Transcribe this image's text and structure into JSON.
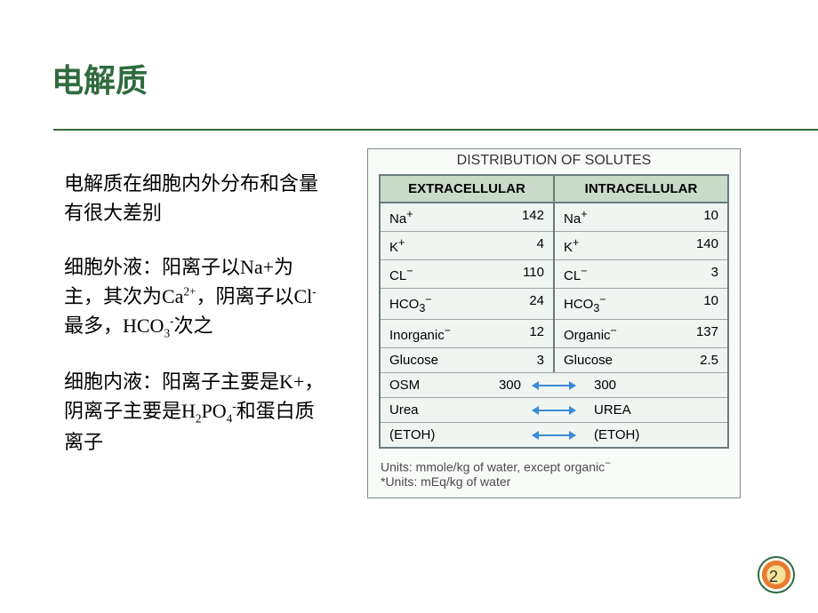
{
  "title": "电解质",
  "text": {
    "p1": "电解质在细胞内外分布和含量有很大差别",
    "p2_1": "细胞外液：阳离子以Na+为主，其次为Ca",
    "p2_sup": "2+",
    "p2_2": "，阴离子以Cl",
    "p2_sup2": "-",
    "p2_3": "最多，HCO",
    "p2_sub": "3",
    "p2_sup3": "-",
    "p2_4": "次之",
    "p3_1": "细胞内液：阳离子主要是K+，阴离子主要是H",
    "p3_sub1": "2",
    "p3_2": "PO",
    "p3_sub2": "4",
    "p3_sup": "-",
    "p3_3": "和蛋白质离子"
  },
  "figure": {
    "title": "DISTRIBUTION OF SOLUTES",
    "header_left": "EXTRACELLULAR",
    "header_right": "INTRACELLULAR",
    "left_rows": [
      {
        "label_html": "Na<sup>+</sup>",
        "val": "142"
      },
      {
        "label_html": "K<sup>+</sup>",
        "val": "4"
      },
      {
        "label_html": "CL<sup>−</sup>",
        "val": "110"
      },
      {
        "label_html": "HCO<sub>3</sub><sup>−</sup>",
        "val": "24"
      },
      {
        "label_html": "Inorganic<sup>−</sup>",
        "val": "12"
      },
      {
        "label_html": "Glucose",
        "val": "3"
      }
    ],
    "right_rows": [
      {
        "label_html": "Na<sup>+</sup>",
        "val": "10"
      },
      {
        "label_html": "K<sup>+</sup>",
        "val": "140"
      },
      {
        "label_html": "CL<sup>−</sup>",
        "val": "3"
      },
      {
        "label_html": "HCO<sub>3</sub><sup>−</sup>",
        "val": "10"
      },
      {
        "label_html": "Organic<sup>−</sup>",
        "val": "137"
      },
      {
        "label_html": "Glucose",
        "val": "2.5"
      }
    ],
    "full_rows": [
      {
        "left": "OSM",
        "left_val": "300",
        "right": "300"
      },
      {
        "left": "Urea",
        "left_val": "",
        "right": "UREA"
      },
      {
        "left": "(ETOH)",
        "left_val": "",
        "right": "(ETOH)"
      }
    ],
    "footnote1": "Units: mmole/kg of water, except organic",
    "footnote1_sup": "−",
    "footnote2": "*Units: mEq/kg of water"
  },
  "page_number": "2",
  "colors": {
    "title": "#2f6b3d",
    "hr": "#2f6b3d",
    "table_border": "#6b7a7f",
    "table_header_bg": "#c9dbc8",
    "table_row_bg": "#f1f5f2",
    "arrow": "#3a8bd8"
  }
}
